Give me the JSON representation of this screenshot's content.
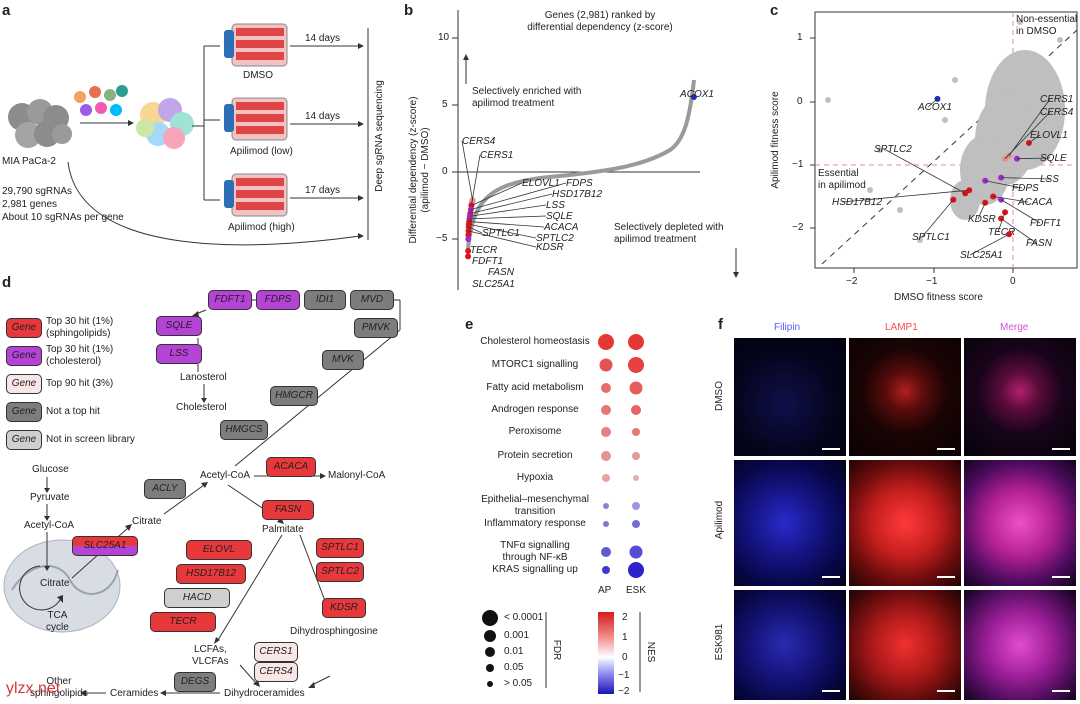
{
  "panel_letters": {
    "a": "a",
    "b": "b",
    "c": "c",
    "d": "d",
    "e": "e",
    "f": "f"
  },
  "panel_a": {
    "cell_line": "MIA PaCa-2",
    "library_stats": [
      "29,790 sgRNAs",
      "2,981 genes",
      "About 10 sgRNAs per gene"
    ],
    "conditions": [
      {
        "name": "DMSO",
        "duration": "14 days"
      },
      {
        "name": "Apilimod (low)",
        "duration": "14 days"
      },
      {
        "name": "Apilimod (high)",
        "duration": "17 days"
      }
    ],
    "sequencing_label": "Deep sgRNA sequencing"
  },
  "panel_b": {
    "title": "Genes (2,981) ranked by\ndifferential dependency (z-score)",
    "ylabel": "Differential dependency (z-score)\n(apilimod − DMSO)",
    "annot_enriched": "Selectively enriched with\napilimod treatment",
    "annot_depleted": "Selectively depleted with\napilimod treatment",
    "gene_labels": [
      "ACOX1",
      "CERS4",
      "CERS1",
      "ELOVL1",
      "FDPS",
      "HSD17B12",
      "LSS",
      "SQLE",
      "ACACA",
      "SPTLC2",
      "SPTLC1",
      "KDSR",
      "TECR",
      "FDFT1",
      "FASN",
      "SLC25A1"
    ],
    "y_ticks": [
      "10",
      "5",
      "0",
      "−5"
    ]
  },
  "panel_c": {
    "xlabel": "DMSO fitness score",
    "ylabel": "Apilimod fitness score",
    "annot_nonessential": "Non-essential\nin DMSO",
    "annot_essential": "Essential\nin apilimod",
    "gene_labels": [
      "ACOX1",
      "CERS1",
      "CERS4",
      "ELOVL1",
      "SPTLC2",
      "SQLE",
      "LSS",
      "FDPS",
      "HSD17B12",
      "ACACA",
      "FDFT1",
      "KDSR",
      "SPTLC1",
      "TECR",
      "FASN",
      "SLC25A1"
    ],
    "x_ticks": [
      "−2",
      "−1",
      "0"
    ],
    "y_ticks": [
      "1",
      "0",
      "−1",
      "−2"
    ]
  },
  "panel_d": {
    "legend": [
      {
        "gene": "Gene",
        "desc": "Top 30 hit (1%)\n(sphingolipids)",
        "color": "#e8383b"
      },
      {
        "gene": "Gene",
        "desc": "Top 30 hit (1%)\n(cholesterol)",
        "color": "#b443d6"
      },
      {
        "gene": "Gene",
        "desc": "Top 90 hit (3%)",
        "color": "#f9e6e6"
      },
      {
        "gene": "Gene",
        "desc": "Not a top hit",
        "color": "#7d7d7d"
      },
      {
        "gene": "Gene",
        "desc": "Not in screen library",
        "color": "#cfcfcf"
      }
    ],
    "genes": {
      "FDFT1": "FDFT1",
      "FDPS": "FDPS",
      "IDI1": "IDI1",
      "MVD": "MVD",
      "SQLE": "SQLE",
      "LSS": "LSS",
      "PMVK": "PMVK",
      "MVK": "MVK",
      "HMGCR": "HMGCR",
      "HMGCS": "HMGCS",
      "ACACA": "ACACA",
      "ACLY": "ACLY",
      "FASN": "FASN",
      "SLC25A1": "SLC25A1",
      "ELOVL": "ELOVL",
      "HSD17B12": "HSD17B12",
      "HACD": "HACD",
      "TECR": "TECR",
      "SPTLC1": "SPTLC1",
      "SPTLC2": "SPTLC2",
      "KDSR": "KDSR",
      "CERS1": "CERS1",
      "CERS4": "CERS4",
      "DEGS": "DEGS"
    },
    "metabolites": {
      "lanosterol": "Lanosterol",
      "cholesterol": "Cholesterol",
      "glucose": "Glucose",
      "pyruvate": "Pyruvate",
      "acetylcoa_mito": "Acetyl-CoA",
      "citrate_mito": "Citrate",
      "tca": "TCA\ncycle",
      "citrate": "Citrate",
      "acetylcoa": "Acetyl-CoA",
      "malonylcoa": "Malonyl-CoA",
      "palmitate": "Palmitate",
      "dihydrosphingosine": "Dihydrosphingosine",
      "lcfas": "LCFAs,\nVLCFAs",
      "dihydroceramides": "Dihydroceramides",
      "ceramides": "Ceramides",
      "other": "Other\nsphingolipids"
    }
  },
  "panel_e": {
    "pathways": [
      "Cholesterol homeostasis",
      "MTORC1 signalling",
      "Fatty acid metabolism",
      "Androgen response",
      "Peroxisome",
      "Protein secretion",
      "Hypoxia",
      "Epithelial–mesenchymal\ntransition",
      "Inflammatory response",
      "TNFα signalling\nthrough NF-κB",
      "KRAS signalling up"
    ],
    "columns": [
      "AP",
      "ESK"
    ],
    "fdr_title": "FDR",
    "fdr_levels": [
      "< 0.0001",
      "0.001",
      "0.01",
      "0.05",
      "> 0.05"
    ],
    "nes_title": "NES",
    "nes_ticks": [
      "2",
      "1",
      "0",
      "−1",
      "−2"
    ]
  },
  "panel_f": {
    "columns": [
      {
        "name": "Filipin",
        "color": "#5b5bff"
      },
      {
        "name": "LAMP1",
        "color": "#ff4a4a"
      },
      {
        "name": "Merge",
        "color": "#d24fe0"
      }
    ],
    "rows": [
      "DMSO",
      "Apilimod",
      "ESK981"
    ]
  },
  "watermark": "ylzx.net",
  "chart_data": [
    {
      "type": "scatter",
      "title": "Genes (2,981) ranked by differential dependency (z-score)",
      "ylabel": "Differential dependency (z-score) (apilimod − DMSO)",
      "ylim": [
        -6.5,
        11
      ],
      "series": [
        {
          "name": "",
          "points": [
            {
              "label": "ACOX1",
              "rank": 2980,
              "y": 5.6
            },
            {
              "label": "CERS4",
              "rank": 60,
              "y": -2.1
            },
            {
              "label": "CERS1",
              "rank": 50,
              "y": -2.3
            },
            {
              "label": "ELOVL1",
              "rank": 45,
              "y": -2.5
            },
            {
              "label": "FDPS",
              "rank": 38,
              "y": -2.8
            },
            {
              "label": "HSD17B12",
              "rank": 30,
              "y": -3.1
            },
            {
              "label": "LSS",
              "rank": 25,
              "y": -3.3
            },
            {
              "label": "SQLE",
              "rank": 20,
              "y": -3.5
            },
            {
              "label": "ACACA",
              "rank": 16,
              "y": -3.7
            },
            {
              "label": "SPTLC2",
              "rank": 12,
              "y": -3.9
            },
            {
              "label": "SPTLC1",
              "rank": 9,
              "y": -4.1
            },
            {
              "label": "KDSR",
              "rank": 7,
              "y": -4.4
            },
            {
              "label": "TECR",
              "rank": 5,
              "y": -4.7
            },
            {
              "label": "FDFT1",
              "rank": 4,
              "y": -5.0
            },
            {
              "label": "FASN",
              "rank": 2,
              "y": -5.9
            },
            {
              "label": "SLC25A1",
              "rank": 1,
              "y": -6.3
            }
          ]
        }
      ]
    },
    {
      "type": "scatter",
      "xlabel": "DMSO fitness score",
      "ylabel": "Apilimod fitness score",
      "xlim": [
        -2.6,
        0.4
      ],
      "ylim": [
        -2.6,
        1.3
      ],
      "series": [
        {
          "name": "",
          "points": [
            {
              "label": "ACOX1",
              "x": -0.95,
              "y": 0.05
            },
            {
              "label": "CERS1",
              "x": -0.05,
              "y": -0.85
            },
            {
              "label": "CERS4",
              "x": -0.1,
              "y": -0.9
            },
            {
              "label": "ELOVL1",
              "x": 0.2,
              "y": -0.65
            },
            {
              "label": "SQLE",
              "x": 0.05,
              "y": -0.9
            },
            {
              "label": "LSS",
              "x": -0.15,
              "y": -1.2
            },
            {
              "label": "FDPS",
              "x": -0.35,
              "y": -1.25
            },
            {
              "label": "HSD17B12",
              "x": -0.55,
              "y": -1.4
            },
            {
              "label": "SPTLC2",
              "x": -0.6,
              "y": -1.45
            },
            {
              "label": "ACACA",
              "x": -0.25,
              "y": -1.5
            },
            {
              "label": "FDFT1",
              "x": -0.15,
              "y": -1.55
            },
            {
              "label": "KDSR",
              "x": -0.35,
              "y": -1.6
            },
            {
              "label": "SPTLC1",
              "x": -0.75,
              "y": -1.55
            },
            {
              "label": "TECR",
              "x": -0.1,
              "y": -1.75
            },
            {
              "label": "FASN",
              "x": -0.15,
              "y": -1.85
            },
            {
              "label": "SLC25A1",
              "x": -0.05,
              "y": -2.1
            }
          ]
        }
      ]
    },
    {
      "type": "heatmap",
      "categories": [
        "Cholesterol homeostasis",
        "MTORC1 signalling",
        "Fatty acid metabolism",
        "Androgen response",
        "Peroxisome",
        "Protein secretion",
        "Hypoxia",
        "Epithelial–mesenchymal transition",
        "Inflammatory response",
        "TNFα signalling through NF-κB",
        "KRAS signalling up"
      ],
      "columns": [
        "AP",
        "ESK"
      ],
      "series": [
        {
          "name": "AP",
          "nes": [
            2.2,
            1.9,
            1.6,
            1.5,
            1.4,
            1.2,
            1.0,
            -1.2,
            -1.3,
            -1.6,
            -1.9
          ],
          "fdr": [
            "< 0.0001",
            "0.001",
            "0.01",
            "0.01",
            "0.01",
            "0.01",
            "0.05",
            "> 0.05",
            "> 0.05",
            "0.01",
            "0.05"
          ]
        },
        {
          "name": "ESK",
          "nes": [
            2.3,
            2.1,
            1.8,
            1.7,
            1.5,
            1.1,
            0.9,
            -1.0,
            -1.4,
            -1.7,
            -2.1
          ],
          "fdr": [
            "< 0.0001",
            "< 0.0001",
            "0.001",
            "0.01",
            "0.05",
            "0.05",
            "> 0.05",
            "0.05",
            "0.05",
            "0.001",
            "< 0.0001"
          ]
        }
      ]
    }
  ]
}
